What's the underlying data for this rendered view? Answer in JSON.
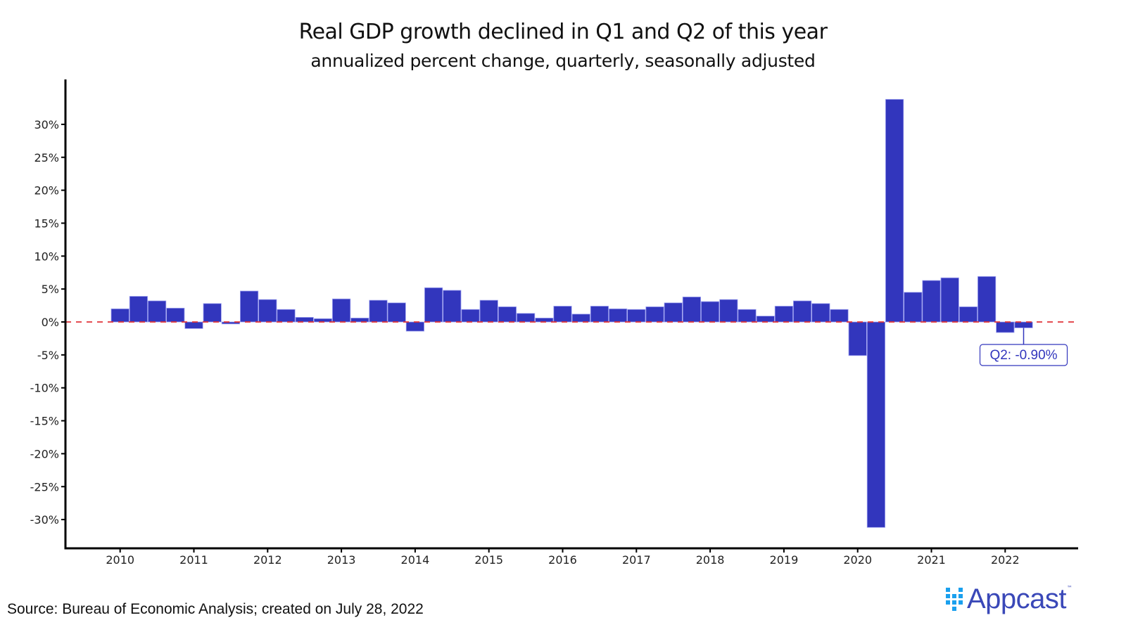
{
  "chart_data": {
    "type": "bar",
    "title": "Real GDP growth declined in Q1 and Q2 of this year",
    "subtitle": "annualized percent change, quarterly, seasonally adjusted",
    "xlabel": "",
    "ylabel": "",
    "ylim": [
      -34,
      37
    ],
    "yticks": [
      30,
      25,
      20,
      15,
      10,
      5,
      0,
      -5,
      -10,
      -15,
      -20,
      -25,
      -30
    ],
    "ytick_labels": [
      "30%",
      "25%",
      "20%",
      "15%",
      "10%",
      "5%",
      "0%",
      "-5%",
      "-10%",
      "-15%",
      "-20%",
      "-25%",
      "-30%"
    ],
    "xtick_labels": [
      "2010",
      "2011",
      "2012",
      "2013",
      "2014",
      "2015",
      "2016",
      "2017",
      "2018",
      "2019",
      "2020",
      "2021",
      "2022"
    ],
    "grid": false,
    "reference_line": {
      "value": 0,
      "style": "dashed",
      "color": "#e0343a"
    },
    "bar_color": "#3236bd",
    "categories": [
      "2010 Q1",
      "2010 Q2",
      "2010 Q3",
      "2010 Q4",
      "2011 Q1",
      "2011 Q2",
      "2011 Q3",
      "2011 Q4",
      "2012 Q1",
      "2012 Q2",
      "2012 Q3",
      "2012 Q4",
      "2013 Q1",
      "2013 Q2",
      "2013 Q3",
      "2013 Q4",
      "2014 Q1",
      "2014 Q2",
      "2014 Q3",
      "2014 Q4",
      "2015 Q1",
      "2015 Q2",
      "2015 Q3",
      "2015 Q4",
      "2016 Q1",
      "2016 Q2",
      "2016 Q3",
      "2016 Q4",
      "2017 Q1",
      "2017 Q2",
      "2017 Q3",
      "2017 Q4",
      "2018 Q1",
      "2018 Q2",
      "2018 Q3",
      "2018 Q4",
      "2019 Q1",
      "2019 Q2",
      "2019 Q3",
      "2019 Q4",
      "2020 Q1",
      "2020 Q2",
      "2020 Q3",
      "2020 Q4",
      "2021 Q1",
      "2021 Q2",
      "2021 Q3",
      "2021 Q4",
      "2022 Q1",
      "2022 Q2"
    ],
    "values": [
      2.0,
      3.9,
      3.2,
      2.1,
      -1.0,
      2.8,
      -0.3,
      4.7,
      3.4,
      1.9,
      0.7,
      0.5,
      3.5,
      0.6,
      3.3,
      2.9,
      -1.4,
      5.2,
      4.8,
      1.9,
      3.3,
      2.3,
      1.3,
      0.6,
      2.4,
      1.2,
      2.4,
      2.0,
      1.9,
      2.3,
      2.9,
      3.8,
      3.1,
      3.4,
      1.9,
      0.9,
      2.4,
      3.2,
      2.8,
      1.9,
      -5.1,
      -31.2,
      33.8,
      4.5,
      6.3,
      6.7,
      2.3,
      6.9,
      -1.6,
      -0.9
    ],
    "annotations": [
      {
        "category": "2022 Q2",
        "text": "Q2: -0.90%"
      }
    ]
  },
  "footer": {
    "source": "Source: Bureau of Economic Analysis; created on July 28, 2022",
    "brand": "Appcast",
    "brand_tm": "™"
  }
}
